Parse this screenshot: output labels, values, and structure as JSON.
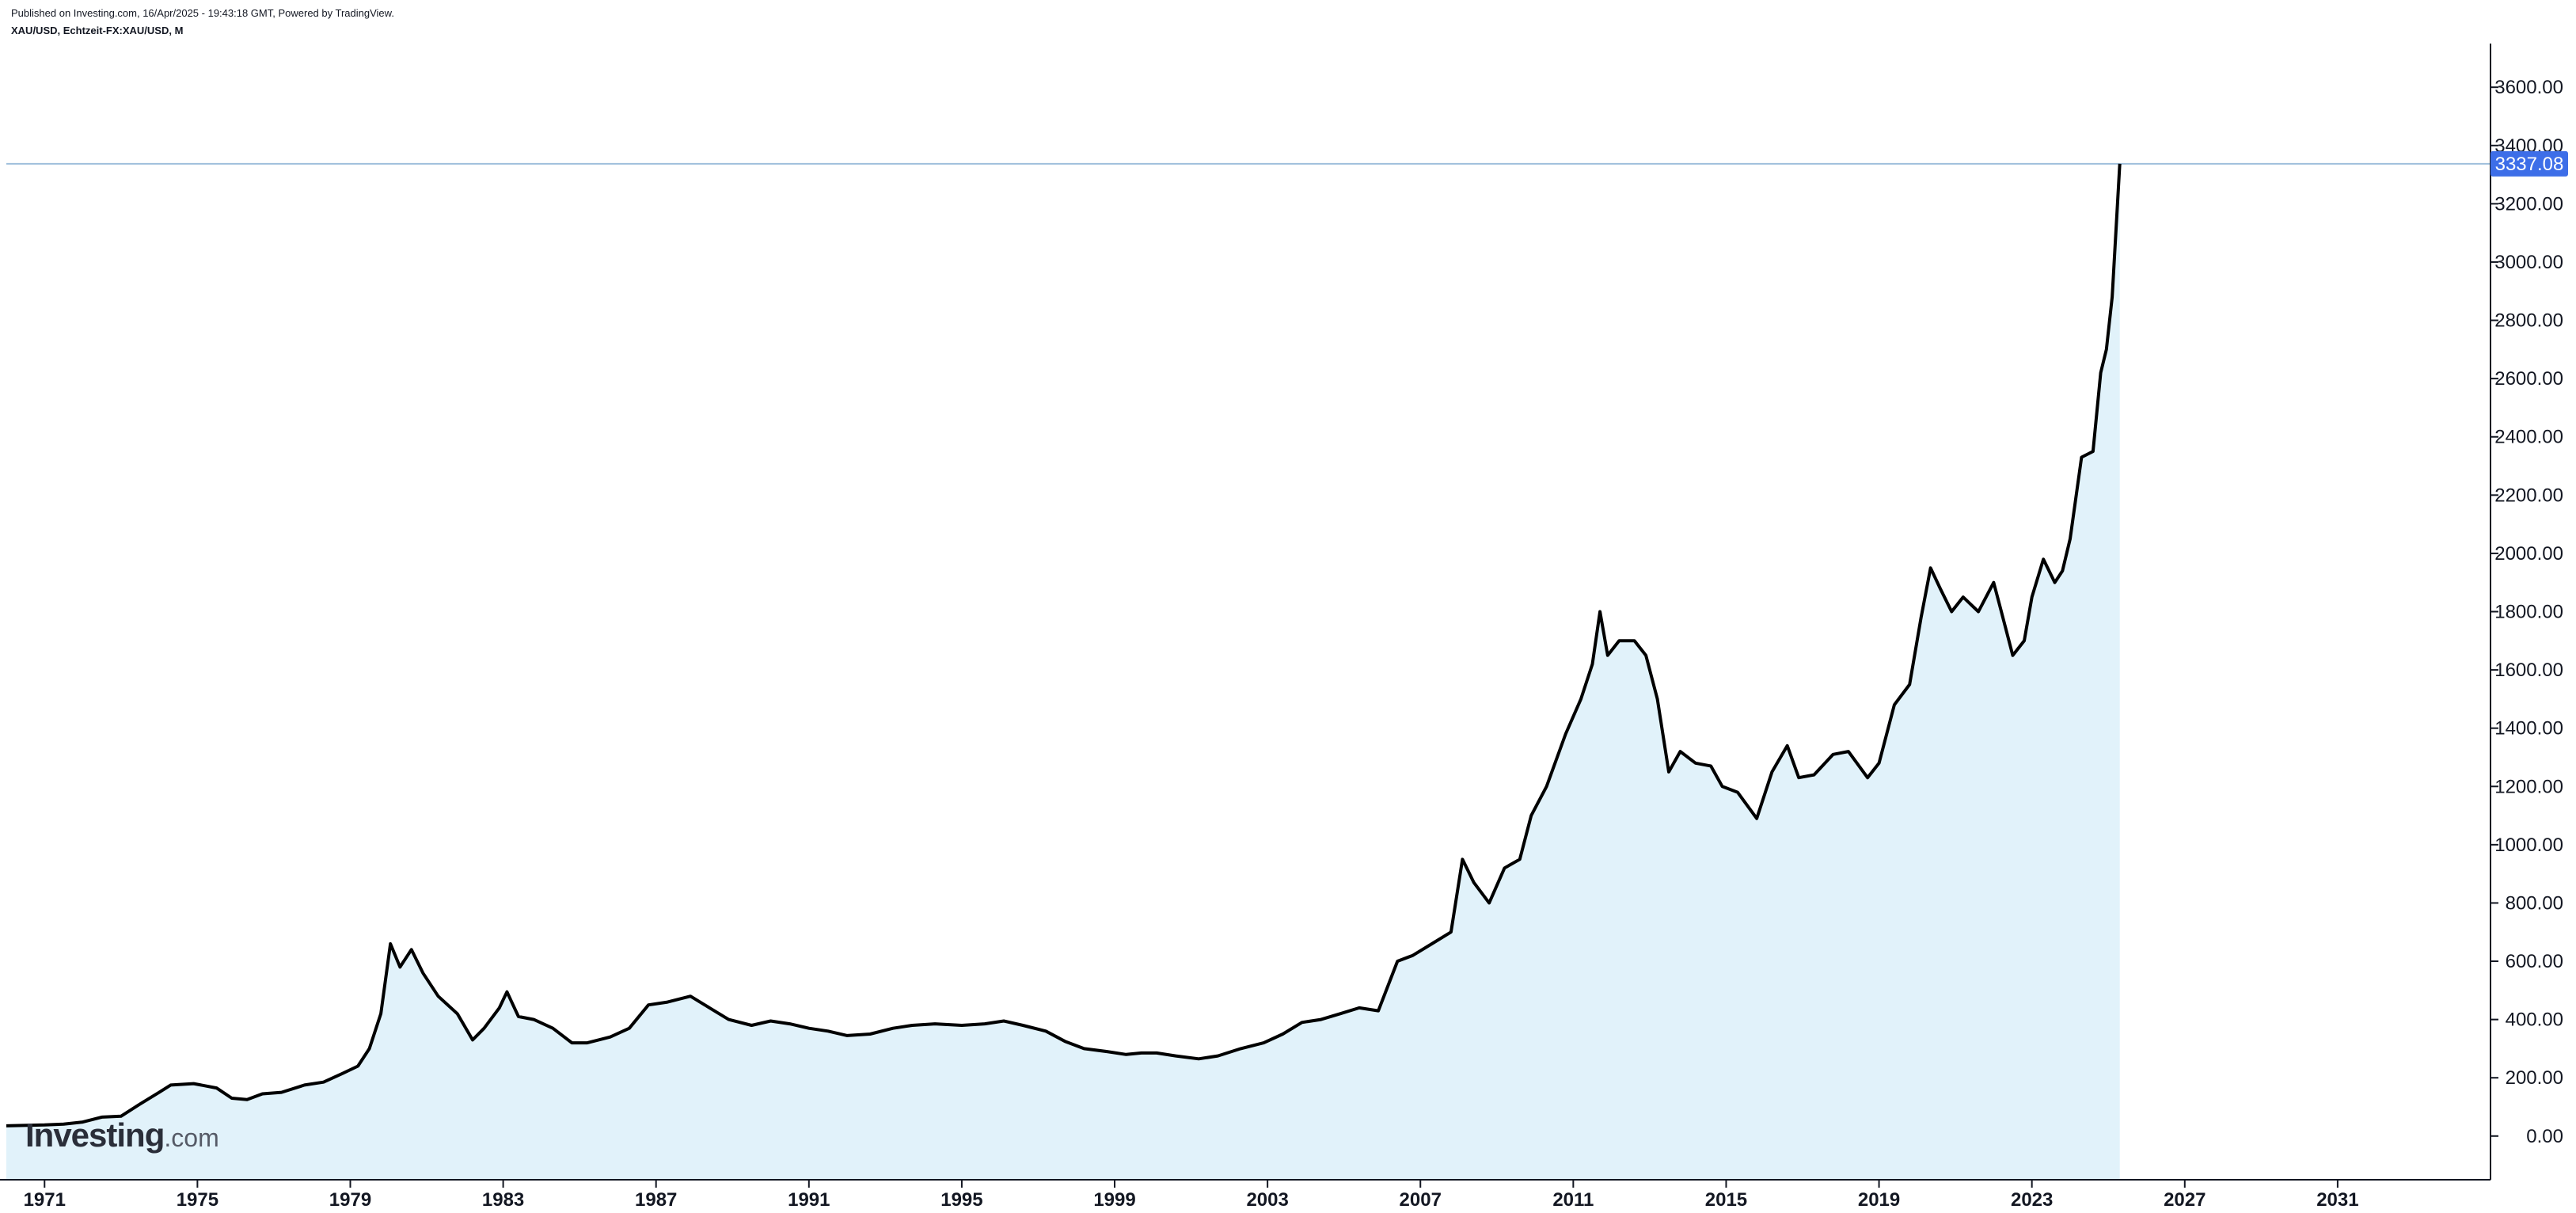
{
  "header": {
    "published": "Published on Investing.com, 16/Apr/2025 - 19:43:18 GMT, Powered by TradingView.",
    "symbol": "XAU/USD, Echtzeit-FX:XAU/USD, M"
  },
  "logo": {
    "brand": "Investing",
    "tld": ".com"
  },
  "colors": {
    "line": "#000000",
    "area": "#e1f2fa",
    "price_badge": "#3d6ee8",
    "price_line": "#9fbfdc",
    "axis": "#131722"
  },
  "chart_data": {
    "type": "area",
    "title": "",
    "xlabel": "",
    "ylabel": "",
    "xlim": [
      1970.0,
      2035.0
    ],
    "ylim": [
      -150,
      3750
    ],
    "x_ticks": [
      "1971",
      "1975",
      "1979",
      "1983",
      "1987",
      "1991",
      "1995",
      "1999",
      "2003",
      "2007",
      "2011",
      "2015",
      "2019",
      "2023",
      "2027",
      "2031"
    ],
    "y_ticks": [
      "0.00",
      "200.00",
      "400.00",
      "600.00",
      "800.00",
      "1000.00",
      "1200.00",
      "1400.00",
      "1600.00",
      "1800.00",
      "2000.00",
      "2200.00",
      "2400.00",
      "2600.00",
      "2800.00",
      "3000.00",
      "3200.00",
      "3400.00",
      "3600.00"
    ],
    "last_price": 3337.08,
    "last_price_label": "3337.08",
    "grid": false,
    "series": [
      {
        "x": [
          1970.0,
          1971.0,
          1971.5,
          1972.0,
          1972.5,
          1973.0,
          1973.5,
          1974.0,
          1974.3,
          1974.9,
          1975.5,
          1975.9,
          1976.3,
          1976.7,
          1977.2,
          1977.8,
          1978.3,
          1978.8,
          1979.2,
          1979.5,
          1979.8,
          1980.05,
          1980.3,
          1980.6,
          1980.9,
          1981.3,
          1981.8,
          1982.2,
          1982.5,
          1982.9,
          1983.1,
          1983.4,
          1983.8,
          1984.3,
          1984.8,
          1985.2,
          1985.8,
          1986.3,
          1986.8,
          1987.3,
          1987.9,
          1988.4,
          1988.9,
          1989.5,
          1990.0,
          1990.5,
          1991.0,
          1991.5,
          1992.0,
          1992.6,
          1993.2,
          1993.7,
          1994.3,
          1995.0,
          1995.6,
          1996.1,
          1996.6,
          1997.2,
          1997.7,
          1998.2,
          1998.8,
          1999.3,
          1999.7,
          2000.1,
          2000.6,
          2001.2,
          2001.7,
          2002.3,
          2002.9,
          2003.4,
          2003.9,
          2004.4,
          2004.9,
          2005.4,
          2005.9,
          2006.4,
          2006.8,
          2007.3,
          2007.8,
          2008.1,
          2008.4,
          2008.8,
          2009.2,
          2009.6,
          2009.9,
          2010.3,
          2010.8,
          2011.2,
          2011.5,
          2011.7,
          2011.9,
          2012.2,
          2012.6,
          2012.9,
          2013.2,
          2013.5,
          2013.8,
          2014.2,
          2014.6,
          2014.9,
          2015.3,
          2015.8,
          2016.2,
          2016.6,
          2016.9,
          2017.3,
          2017.8,
          2018.2,
          2018.7,
          2019.0,
          2019.4,
          2019.8,
          2020.1,
          2020.35,
          2020.6,
          2020.9,
          2021.2,
          2021.6,
          2022.0,
          2022.2,
          2022.5,
          2022.8,
          2023.0,
          2023.3,
          2023.6,
          2023.8,
          2024.0,
          2024.3,
          2024.6,
          2024.8,
          2024.95,
          2025.1,
          2025.3
        ],
        "y": [
          35,
          38,
          41,
          48,
          65,
          68,
          110,
          150,
          175,
          180,
          165,
          130,
          125,
          145,
          150,
          175,
          185,
          215,
          240,
          300,
          420,
          660,
          580,
          640,
          560,
          480,
          420,
          330,
          370,
          440,
          495,
          410,
          400,
          370,
          320,
          320,
          340,
          370,
          450,
          460,
          480,
          440,
          400,
          380,
          395,
          385,
          370,
          360,
          345,
          350,
          370,
          380,
          385,
          380,
          385,
          395,
          380,
          360,
          325,
          300,
          290,
          280,
          285,
          285,
          275,
          265,
          275,
          300,
          320,
          350,
          390,
          400,
          420,
          440,
          430,
          600,
          620,
          660,
          700,
          950,
          870,
          800,
          920,
          950,
          1100,
          1200,
          1380,
          1500,
          1620,
          1800,
          1650,
          1700,
          1700,
          1650,
          1500,
          1250,
          1320,
          1280,
          1270,
          1200,
          1180,
          1090,
          1250,
          1340,
          1230,
          1240,
          1310,
          1320,
          1230,
          1280,
          1480,
          1550,
          1780,
          1950,
          1880,
          1800,
          1850,
          1800,
          1900,
          1800,
          1650,
          1700,
          1850,
          1980,
          1900,
          1940,
          2050,
          2330,
          2350,
          2620,
          2700,
          2880,
          3337.08
        ]
      }
    ]
  }
}
